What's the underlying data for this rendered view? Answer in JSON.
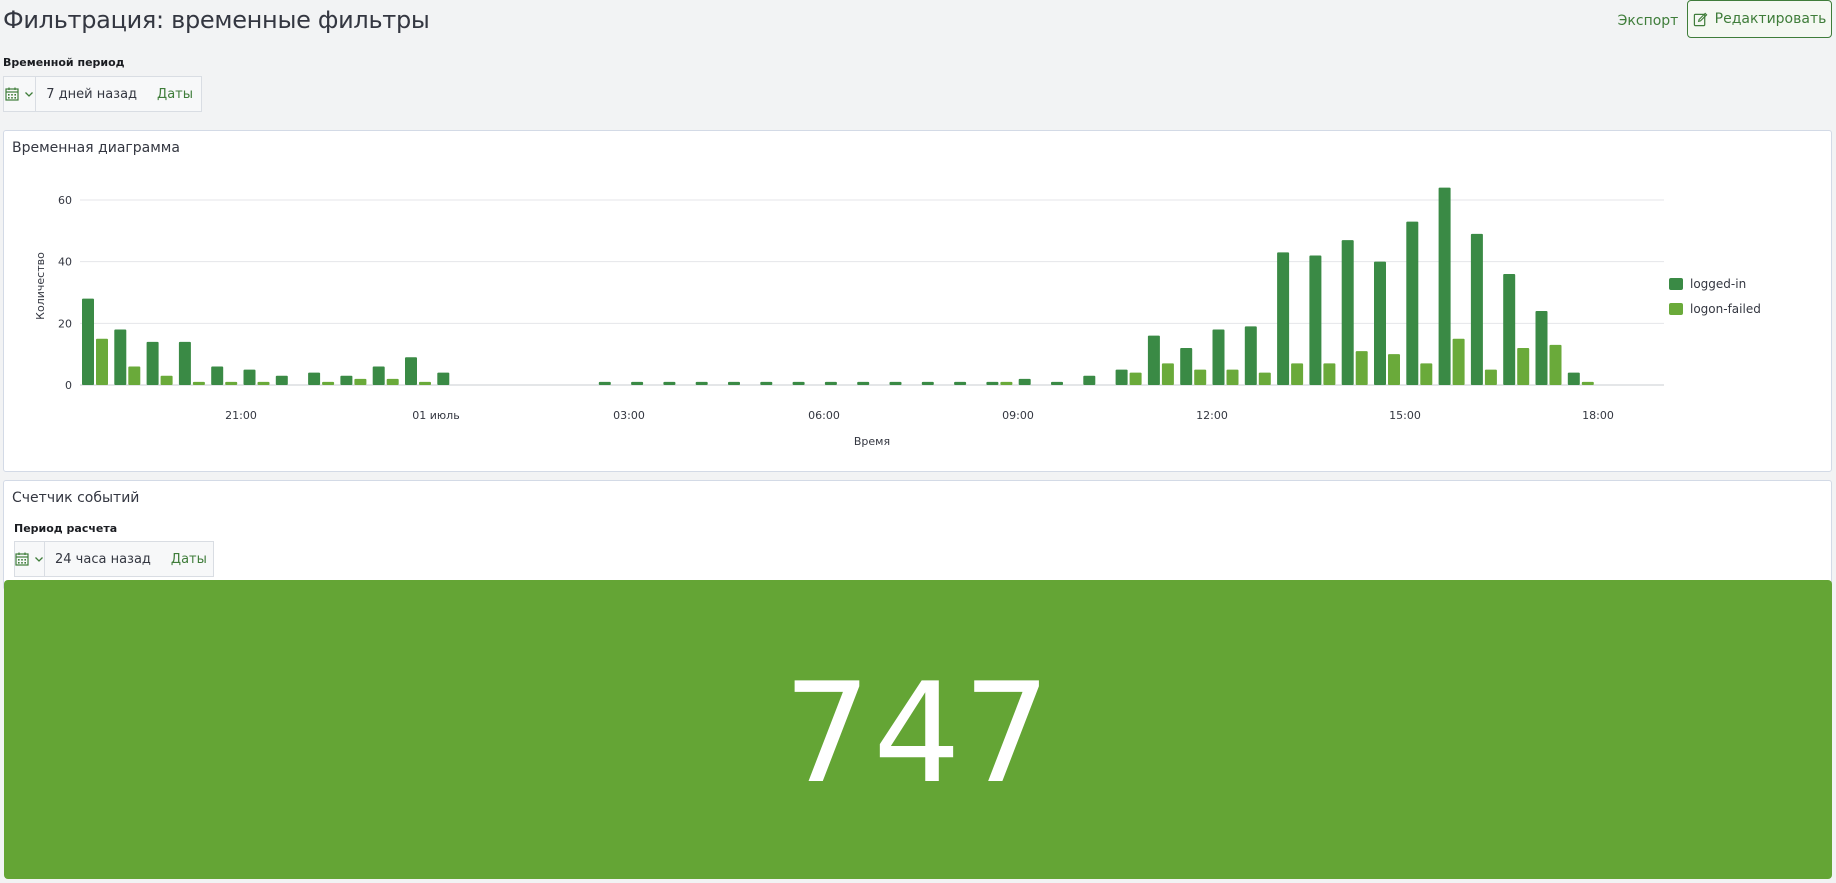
{
  "header": {
    "title": "Фильтрация: временные фильтры",
    "export_label": "Экспорт",
    "edit_label": "Редактировать"
  },
  "time_filter": {
    "label": "Временной период",
    "value": "7 дней назад",
    "dates_label": "Даты"
  },
  "timeline_panel": {
    "title": "Временная диаграмма"
  },
  "counter_panel": {
    "title": "Счетчик событий",
    "period_label": "Период расчета",
    "period_value": "24 часа назад",
    "dates_label": "Даты",
    "metric_value": "747"
  },
  "colors": {
    "logged_in": "#3a8a45",
    "logon_failed": "#6aaa3a",
    "metric_bg": "#64a535",
    "accent": "#3f7d3a"
  },
  "chart_data": {
    "type": "bar",
    "xlabel": "Время",
    "ylabel": "Количество",
    "ylim": [
      0,
      65
    ],
    "yticks": [
      0,
      20,
      40,
      60
    ],
    "xticks": [
      "21:00",
      "01 июль",
      "03:00",
      "06:00",
      "09:00",
      "12:00",
      "15:00",
      "18:00"
    ],
    "legend_position": "right",
    "grid": true,
    "categories": [
      "18:30",
      "19:00",
      "19:30",
      "20:00",
      "20:30",
      "21:00",
      "21:30",
      "22:00",
      "22:30",
      "23:00",
      "23:30",
      "00:00",
      "00:30",
      "01:00",
      "01:30",
      "02:00",
      "02:30",
      "03:00",
      "03:30",
      "04:00",
      "04:30",
      "05:00",
      "05:30",
      "06:00",
      "06:30",
      "07:00",
      "07:30",
      "08:00",
      "08:30",
      "09:00",
      "09:30",
      "10:00",
      "10:30",
      "11:00",
      "11:30",
      "12:00",
      "12:30",
      "13:00",
      "13:30",
      "14:00",
      "14:30",
      "15:00",
      "15:30",
      "16:00",
      "16:30",
      "17:00",
      "17:30",
      "18:00",
      "18:30",
      "19:00"
    ],
    "series": [
      {
        "name": "logged-in",
        "values": [
          28,
          18,
          14,
          14,
          6,
          5,
          3,
          4,
          3,
          6,
          9,
          4,
          0,
          0,
          0,
          0,
          1,
          1,
          1,
          1,
          1,
          1,
          1,
          1,
          1,
          1,
          1,
          1,
          1,
          2,
          1,
          3,
          5,
          16,
          12,
          18,
          19,
          43,
          42,
          47,
          40,
          53,
          64,
          49,
          36,
          24,
          4,
          0,
          0,
          0
        ]
      },
      {
        "name": "logon-failed",
        "values": [
          15,
          6,
          3,
          1,
          1,
          1,
          0,
          1,
          2,
          2,
          1,
          0,
          0,
          0,
          0,
          0,
          0,
          0,
          0,
          0,
          0,
          0,
          0,
          0,
          0,
          0,
          0,
          0,
          1,
          0,
          0,
          0,
          4,
          7,
          5,
          5,
          4,
          7,
          7,
          11,
          10,
          7,
          15,
          5,
          12,
          13,
          1,
          0,
          0,
          0
        ]
      }
    ]
  }
}
